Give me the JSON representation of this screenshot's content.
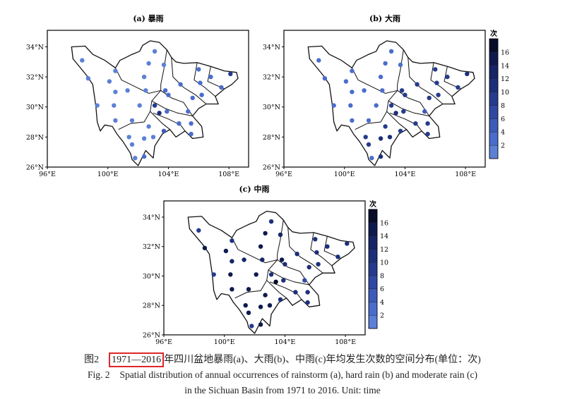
{
  "figure": {
    "panels": [
      {
        "id": "a",
        "title": "(a) 暴雨"
      },
      {
        "id": "b",
        "title": "(b) 大雨"
      },
      {
        "id": "c",
        "title": "(c) 中雨"
      }
    ],
    "x_ticks": [
      "96°E",
      "100°E",
      "104°E",
      "108°E"
    ],
    "x_tick_values": [
      96,
      100,
      104,
      108
    ],
    "y_ticks": [
      "34°N",
      "32°N",
      "30°N",
      "28°N",
      "26°N"
    ],
    "y_tick_values": [
      34,
      32,
      30,
      28,
      26
    ],
    "lon_range": [
      96,
      109.3
    ],
    "lat_range": [
      26,
      35.1
    ],
    "colorbar": {
      "unit_label": "次",
      "tick_labels": [
        "2",
        "4",
        "6",
        "8",
        "10",
        "12",
        "14",
        "16"
      ],
      "levels": [
        2,
        4,
        6,
        8,
        10,
        12,
        14,
        16
      ],
      "colors": [
        "#5b80d6",
        "#4a6dcc",
        "#3c5bb8",
        "#2f49a3",
        "#253b8e",
        "#1c2f7a",
        "#152566",
        "#0e1a4d",
        "#070c28"
      ]
    }
  },
  "chart_data": {
    "type": "scatter",
    "stations_lon": [
      98.3,
      103.1,
      102.7,
      103.7,
      100.5,
      98.7,
      100.1,
      102.4,
      106.0,
      106.8,
      108.1,
      106.1,
      104.8,
      107.5,
      100.5,
      101.3,
      102.5,
      103.8,
      104.0,
      106.2,
      105.6,
      99.3,
      100.4,
      102.1,
      103.1,
      103.4,
      103.9,
      105.3,
      100.5,
      101.6,
      102.7,
      104.7,
      105.5,
      103.7,
      105.5,
      101.4,
      102.4,
      103.0,
      101.6,
      101.8,
      102.4
    ],
    "stations_lat": [
      33.1,
      33.7,
      32.9,
      32.8,
      32.4,
      31.9,
      31.7,
      32.0,
      32.5,
      32.0,
      32.2,
      31.6,
      31.5,
      31.3,
      31.0,
      31.1,
      31.1,
      31.1,
      30.8,
      30.8,
      30.6,
      30.1,
      30.1,
      30.1,
      30.1,
      29.6,
      29.7,
      29.7,
      29.1,
      29.1,
      28.7,
      28.9,
      28.9,
      28.4,
      28.2,
      28.0,
      27.9,
      28.0,
      27.5,
      26.6,
      26.7
    ],
    "series": [
      {
        "panel": "a",
        "values": [
          1,
          1,
          1,
          1,
          1,
          1,
          1,
          1,
          3,
          3,
          9,
          3,
          3,
          3,
          1,
          1,
          1,
          3,
          3,
          3,
          3,
          1,
          1,
          1,
          9,
          11,
          3,
          3,
          1,
          1,
          1,
          3,
          3,
          5,
          3,
          1,
          1,
          1,
          1,
          1,
          3
        ]
      },
      {
        "panel": "b",
        "values": [
          3,
          3,
          3,
          3,
          3,
          3,
          3,
          3,
          9,
          9,
          11,
          9,
          9,
          9,
          3,
          3,
          3,
          9,
          9,
          9,
          9,
          3,
          3,
          3,
          9,
          11,
          9,
          5,
          3,
          3,
          9,
          9,
          9,
          9,
          9,
          9,
          11,
          11,
          9,
          3,
          11
        ]
      },
      {
        "panel": "c",
        "values": [
          9,
          11,
          15,
          13,
          11,
          15,
          15,
          15,
          11,
          11,
          11,
          11,
          11,
          11,
          13,
          13,
          13,
          15,
          11,
          11,
          11,
          9,
          15,
          15,
          11,
          17,
          11,
          7,
          15,
          15,
          15,
          11,
          11,
          11,
          11,
          15,
          15,
          15,
          15,
          9,
          15
        ]
      }
    ]
  },
  "caption": {
    "zh_label": "图2",
    "zh_period": "1971—2016",
    "zh_text": "年四川盆地暴雨(a)、大雨(b)、中雨(c)年均发生次数的空间分布(单位：次)",
    "en_label": "Fig. 2",
    "en_line1": "Spatial distribution of annual occurrences of rainstorm (a), hard rain (b) and moderate rain (c)",
    "en_line2": "in the Sichuan Basin from 1971 to 2016. Unit: time"
  }
}
